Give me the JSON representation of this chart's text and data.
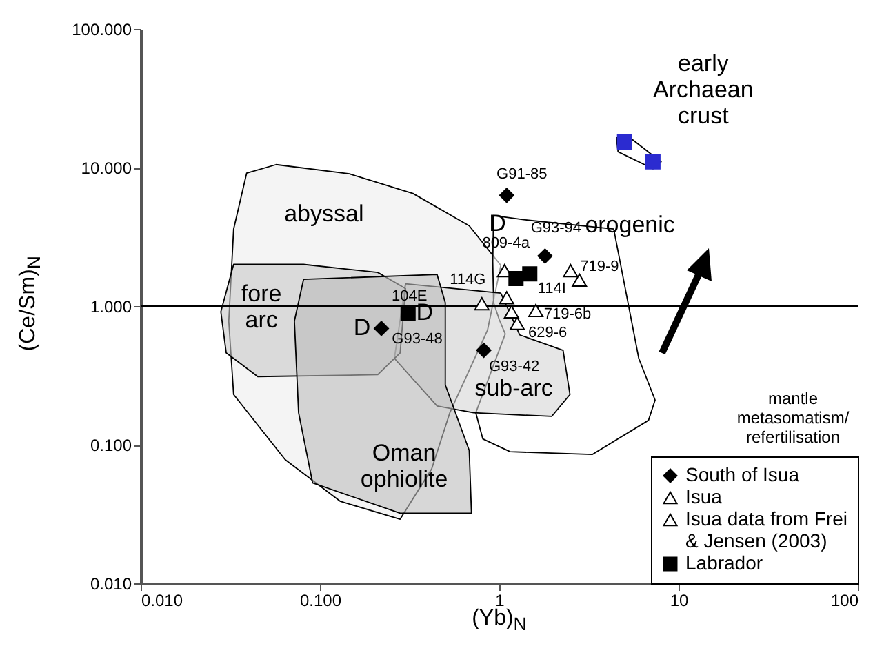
{
  "chart_data": {
    "type": "scatter",
    "xlabel": "(Yb)$_{N}$",
    "ylabel": "(Ce/Sm)$_{N}$",
    "log": "xy",
    "xlim": [
      0.01,
      100
    ],
    "ylim": [
      0.01,
      100
    ],
    "xticks": [
      {
        "value": 0.01,
        "label": "0.010"
      },
      {
        "value": 0.1,
        "label": "0.100"
      },
      1,
      10,
      100
    ],
    "yticks": [
      {
        "value": 0.01,
        "label": "0.010"
      },
      {
        "value": 0.1,
        "label": "0.100"
      },
      {
        "value": 1,
        "label": "1.000"
      },
      {
        "value": 10,
        "label": "10.000"
      },
      {
        "value": 100,
        "label": "100.000"
      }
    ],
    "grid": false,
    "legend": "bottom right",
    "ref_lines": [
      {
        "axis": "y",
        "value": 1,
        "color": "#000000"
      }
    ],
    "series": [
      {
        "type": "area",
        "name": "abyssal",
        "color": "#ececec",
        "x": [
          0.039,
          0.057,
          0.146,
          0.33,
          0.68,
          1.02,
          0.86,
          0.53,
          0.42,
          0.28,
          0.13,
          0.064,
          0.033,
          0.031,
          0.033,
          0.039
        ],
        "values": [
          9.1,
          10.5,
          9.0,
          6.5,
          3.8,
          1.97,
          0.67,
          0.17,
          0.067,
          0.029,
          0.039,
          0.078,
          0.23,
          0.78,
          3.6,
          9.1
        ]
      },
      {
        "type": "area",
        "name": "orogenic",
        "color": "#ffffff",
        "x": [
          0.93,
          1.37,
          4.35,
          6.0,
          7.4,
          6.8,
          3.3,
          1.15,
          0.81,
          0.74,
          1.08,
          1.0,
          0.93,
          0.92,
          0.93
        ],
        "values": [
          4.5,
          4.2,
          3.6,
          0.42,
          0.21,
          0.15,
          0.085,
          0.089,
          0.11,
          0.17,
          0.63,
          0.8,
          1.06,
          2.1,
          4.5
        ]
      },
      {
        "type": "area",
        "name": "sub-arc",
        "color": "#d6d6d6",
        "x": [
          0.3,
          1.02,
          1.3,
          2.27,
          2.48,
          1.96,
          0.72,
          0.45,
          0.26,
          0.3
        ],
        "values": [
          1.45,
          1.24,
          0.62,
          0.48,
          0.23,
          0.16,
          0.17,
          0.19,
          0.42,
          1.45
        ]
      },
      {
        "type": "area",
        "name": "fore\narc",
        "color": "#c8c8c8",
        "x": [
          0.033,
          0.081,
          0.21,
          0.3,
          0.28,
          0.21,
          0.045,
          0.03,
          0.028,
          0.033
        ],
        "values": [
          2.0,
          2.0,
          1.75,
          1.34,
          0.46,
          0.32,
          0.31,
          0.46,
          0.91,
          2.0
        ]
      },
      {
        "type": "area",
        "name": "Oman\nophiolite",
        "color": "#bdbdbd",
        "x": [
          0.081,
          0.45,
          0.5,
          0.5,
          0.68,
          0.7,
          0.28,
          0.091,
          0.076,
          0.072,
          0.081
        ],
        "values": [
          1.56,
          1.69,
          1.06,
          0.27,
          0.091,
          0.032,
          0.032,
          0.053,
          0.17,
          0.78,
          1.56
        ]
      },
      {
        "type": "area",
        "name": "early\nArchaean\ncrust",
        "color": "#ffffff",
        "x": [
          4.5,
          5.5,
          8.0,
          7.2,
          4.6,
          4.5
        ],
        "values": [
          16.5,
          16.0,
          11.0,
          9.8,
          13.0,
          16.5
        ]
      },
      {
        "type": "scatter",
        "name": "South of Isua",
        "marker": "diamond",
        "color": "#000000",
        "x": [
          1.1,
          1.8,
          0.22,
          0.82
        ],
        "values": [
          6.3,
          2.3,
          0.69,
          0.48
        ]
      },
      {
        "type": "scatter",
        "name": "Isua",
        "marker": "triangle",
        "color": "#000000",
        "x": [
          1.07,
          2.5,
          1.6,
          1.26
        ],
        "values": [
          1.8,
          1.8,
          0.93,
          0.75
        ]
      },
      {
        "type": "scatter",
        "name": "Isua data from Frei & Jensen (2003)",
        "marker": "triangle",
        "color": "#000000",
        "x": [
          2.8,
          0.8,
          1.1,
          1.17
        ],
        "values": [
          1.54,
          1.04,
          1.15,
          0.91
        ]
      },
      {
        "type": "scatter",
        "name": "Labrador",
        "marker": "square",
        "color": "#000000",
        "x": [
          0.31,
          1.24,
          1.48
        ],
        "values": [
          0.89,
          1.58,
          1.71
        ]
      },
      {
        "type": "scatter",
        "marker": "square",
        "color": "#2b2bd0",
        "x": [
          5.0,
          7.2
        ],
        "values": [
          15.3,
          11.0
        ]
      }
    ],
    "annotations": [
      {
        "text": "G91-85",
        "x": 1.1,
        "y": 6.3
      },
      {
        "text": "G93-94",
        "x": 1.8,
        "y": 2.3
      },
      {
        "text": "809-4a",
        "x": 1.07,
        "y": 1.8
      },
      {
        "text": "114G",
        "x": 1.24,
        "y": 1.58
      },
      {
        "text": "114I",
        "x": 1.48,
        "y": 1.71
      },
      {
        "text": "719-9",
        "x": 2.5,
        "y": 1.8
      },
      {
        "text": "719-6b",
        "x": 1.6,
        "y": 0.93
      },
      {
        "text": "629-6",
        "x": 1.26,
        "y": 0.75
      },
      {
        "text": "104E",
        "x": 0.31,
        "y": 0.89
      },
      {
        "text": "G93-48",
        "x": 0.22,
        "y": 0.69
      },
      {
        "text": "G93-42",
        "x": 0.82,
        "y": 0.48
      },
      {
        "text": "D",
        "x": 1.07,
        "y": 1.8
      },
      {
        "text": "D",
        "x": 0.31,
        "y": 0.89
      },
      {
        "text": "D",
        "x": 0.22,
        "y": 0.69
      },
      "mantle\nmetasomatism/\nrefertilisation"
    ]
  }
}
